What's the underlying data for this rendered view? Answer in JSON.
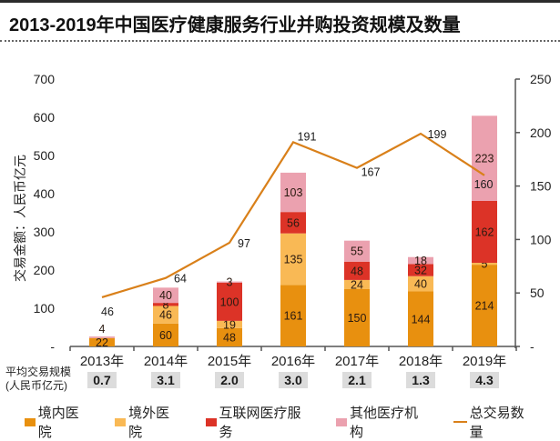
{
  "header": {
    "title": "2013-2019年中国医疗健康服务行业并购投资规模及数量"
  },
  "chart_data": {
    "type": "bar",
    "subtype": "stacked-bar-with-line",
    "title": "2013-2019年中国医疗健康服务行业并购投资规模及数量",
    "categories": [
      "2013年",
      "2014年",
      "2015年",
      "2016年",
      "2017年",
      "2018年",
      "2019年"
    ],
    "xlabel": "",
    "ylabel": "交易金额：人民币亿元",
    "y2label": "",
    "ylim": [
      0,
      700
    ],
    "y2lim": [
      0,
      250
    ],
    "yticks": [
      0,
      100,
      200,
      300,
      400,
      500,
      600,
      700
    ],
    "ytick_labels": [
      "-",
      "100",
      "200",
      "300",
      "400",
      "500",
      "600",
      "700"
    ],
    "y2ticks": [
      0,
      50,
      100,
      150,
      200,
      250
    ],
    "y2tick_labels": [
      "-",
      "50",
      "100",
      "150",
      "200",
      "250"
    ],
    "grid": false,
    "legend_position": "bottom",
    "series": [
      {
        "name": "境内医院",
        "type": "bar",
        "axis": "left",
        "color": "#E8900F",
        "values": [
          22,
          60,
          48,
          161,
          150,
          144,
          214
        ]
      },
      {
        "name": "境外医院",
        "type": "bar",
        "axis": "left",
        "color": "#F9B955",
        "values": [
          null,
          46,
          19,
          135,
          24,
          40,
          5
        ]
      },
      {
        "name": "互联网医疗服务",
        "type": "bar",
        "axis": "left",
        "color": "#DC3327",
        "values": [
          null,
          8,
          100,
          56,
          48,
          32,
          162
        ]
      },
      {
        "name": "其他医疗机构",
        "type": "bar",
        "axis": "left",
        "color": "#EBA1AF",
        "values": [
          4,
          40,
          3,
          103,
          55,
          18,
          223
        ]
      },
      {
        "name": "总交易数量",
        "type": "line",
        "axis": "right",
        "color": "#D9801A",
        "values": [
          46,
          64,
          97,
          191,
          167,
          199,
          160
        ]
      }
    ],
    "avg_deal_size": {
      "label": "平均交易规模",
      "unit": "(人民币亿元)",
      "values": [
        "0.7",
        "3.1",
        "2.0",
        "3.0",
        "2.1",
        "1.3",
        "4.3"
      ]
    }
  }
}
